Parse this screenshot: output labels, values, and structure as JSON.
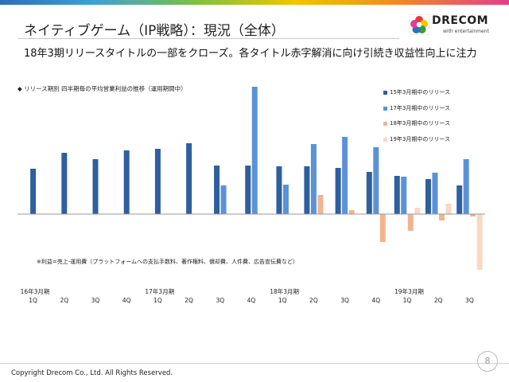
{
  "slide": {
    "title": "ネイティブゲーム（IP戦略）：現況（全体）",
    "subtitle": "18年3期リリースタイトルの一部をクローズ。各タイトル赤字解消に向け引続き収益性向上に注力",
    "chart_title": "◆ リリース期別 四半期毎の平均営業利益の推移（運用期間中）",
    "note": "※利益=売上-運用費（プラットフォームへの支払手数料、著作権料、償却費、人件費、広告宣伝費など）",
    "copyright": "Copyright Drecom Co., Ltd. All Rights Reserved.",
    "page_number": "8"
  },
  "logo": {
    "brand": "DRECOM",
    "tagline": "with entertainment"
  },
  "chart_data": {
    "type": "bar",
    "title": "◆ リリース期別 四半期毎の平均営業利益の推移（運用期間中）",
    "xlabel": "",
    "ylabel": "",
    "y_axis_shown": false,
    "categories": [
      "16年3月期 1Q",
      "2Q",
      "3Q",
      "4Q",
      "17年3月期 1Q",
      "2Q",
      "3Q",
      "4Q",
      "18年3月期 1Q",
      "2Q",
      "3Q",
      "4Q",
      "19年3月期 1Q",
      "2Q",
      "3Q"
    ],
    "fiscal_year_labels": [
      "16年3月期",
      "",
      "",
      "",
      "17年3月期",
      "",
      "",
      "",
      "18年3月期",
      "",
      "",
      "",
      "19年3月期",
      "",
      ""
    ],
    "quarter_labels": [
      "1Q",
      "2Q",
      "3Q",
      "4Q",
      "1Q",
      "2Q",
      "3Q",
      "4Q",
      "1Q",
      "2Q",
      "3Q",
      "4Q",
      "1Q",
      "2Q",
      "3Q"
    ],
    "ylim": [
      -72,
      162
    ],
    "legend_position": "right",
    "series": [
      {
        "name": "15年3月期中のリリース",
        "color": "#2e5f9e",
        "values": [
          57,
          77,
          69,
          80,
          82,
          89,
          61,
          61,
          60,
          60,
          58,
          53,
          48,
          44,
          36
        ]
      },
      {
        "name": "17年3月期中のリリース",
        "color": "#5b92d6",
        "values": [
          null,
          null,
          null,
          null,
          null,
          null,
          36,
          160,
          37,
          88,
          97,
          84,
          47,
          52,
          69
        ]
      },
      {
        "name": "18年3月期中のリリース",
        "color": "#f0b48f",
        "values": [
          null,
          null,
          null,
          null,
          null,
          null,
          null,
          null,
          null,
          24,
          5,
          -35,
          -21,
          -8,
          -3
        ]
      },
      {
        "name": "19年3月期中のリリース",
        "color": "#f9d9c4",
        "values": [
          null,
          null,
          null,
          null,
          null,
          null,
          null,
          null,
          null,
          null,
          null,
          null,
          8,
          13,
          -70
        ]
      }
    ]
  }
}
